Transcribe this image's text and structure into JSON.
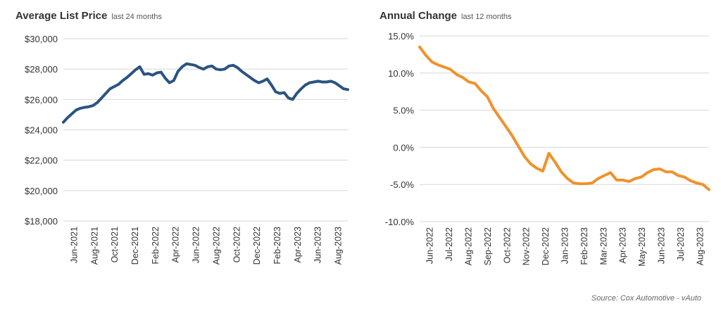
{
  "source_note": "Source: Cox Automotive - vAuto",
  "colors": {
    "left_line": "#2a5480",
    "right_line": "#f0922b",
    "grid": "#d6d6d6",
    "text": "#333333"
  },
  "chart_data": [
    {
      "type": "line",
      "title": "Average List Price",
      "subtitle": "last 24 months",
      "ylim": [
        18000,
        30000
      ],
      "yticks": [
        18000,
        20000,
        22000,
        24000,
        26000,
        28000,
        30000
      ],
      "ytick_labels": [
        "$18,000",
        "$20,000",
        "$22,000",
        "$24,000",
        "$26,000",
        "$28,000",
        "$30,000"
      ],
      "grid": true,
      "xtick_labels": [
        "Jun-2021",
        "Aug-2021",
        "Oct-2021",
        "Dec-2021",
        "Feb-2022",
        "Apr-2022",
        "Jun-2022",
        "Aug-2022",
        "Oct-2022",
        "Dec-2022",
        "Feb-2023",
        "Apr-2023",
        "Jun-2023",
        "Aug-2023"
      ],
      "series": [
        {
          "values": [
            24500,
            24800,
            25050,
            25300,
            25420,
            25480,
            25520,
            25600,
            25800,
            26100,
            26400,
            26700,
            26850,
            27000,
            27250,
            27450,
            27700,
            27950,
            28150,
            27650,
            27700,
            27600,
            27750,
            27800,
            27400,
            27100,
            27250,
            27850,
            28150,
            28350,
            28300,
            28250,
            28100,
            28000,
            28150,
            28200,
            28000,
            27950,
            28000,
            28200,
            28250,
            28100,
            27850,
            27650,
            27450,
            27250,
            27100,
            27200,
            27350,
            26950,
            26500,
            26400,
            26450,
            26100,
            26000,
            26400,
            26700,
            26950,
            27100,
            27150,
            27200,
            27150,
            27150,
            27200,
            27100,
            26900,
            26700,
            26650
          ]
        }
      ]
    },
    {
      "type": "line",
      "title": "Annual Change",
      "subtitle": "last 12 months",
      "ylim": [
        -10,
        15
      ],
      "yticks": [
        -10,
        -5,
        0,
        5,
        10,
        15
      ],
      "ytick_labels": [
        "-10.0%",
        "-5.0%",
        "0.0%",
        "5.0%",
        "10.0%",
        "15.0%"
      ],
      "grid": true,
      "xtick_labels": [
        "Jun-2022",
        "Jul-2022",
        "Aug-2022",
        "Sep-2022",
        "Oct-2022",
        "Nov-2022",
        "Dec-2022",
        "Jan-2023",
        "Feb-2023",
        "Mar-2023",
        "Apr-2023",
        "May-2023",
        "Jun-2023",
        "Jul-2023",
        "Aug-2023"
      ],
      "series": [
        {
          "values": [
            13.5,
            12.4,
            11.5,
            11.1,
            10.8,
            10.5,
            9.8,
            9.4,
            8.8,
            8.6,
            7.6,
            6.8,
            5.2,
            4.0,
            2.8,
            1.6,
            0.2,
            -1.2,
            -2.2,
            -2.8,
            -3.2,
            -0.8,
            -2.0,
            -3.3,
            -4.2,
            -4.8,
            -4.9,
            -4.9,
            -4.8,
            -4.2,
            -3.8,
            -3.4,
            -4.4,
            -4.4,
            -4.6,
            -4.2,
            -4.0,
            -3.4,
            -3.0,
            -2.9,
            -3.3,
            -3.3,
            -3.8,
            -4.0,
            -4.5,
            -4.8,
            -5.0,
            -5.7
          ]
        }
      ]
    }
  ]
}
